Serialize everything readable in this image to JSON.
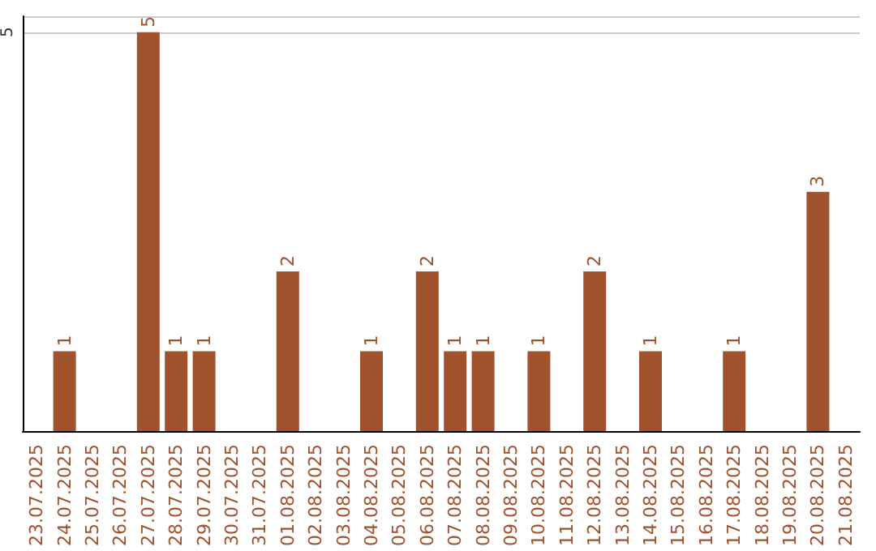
{
  "chart_data": {
    "type": "bar",
    "categories": [
      "23.07.2025",
      "24.07.2025",
      "25.07.2025",
      "26.07.2025",
      "27.07.2025",
      "28.07.2025",
      "29.07.2025",
      "30.07.2025",
      "31.07.2025",
      "01.08.2025",
      "02.08.2025",
      "03.08.2025",
      "04.08.2025",
      "05.08.2025",
      "06.08.2025",
      "07.08.2025",
      "08.08.2025",
      "09.08.2025",
      "10.08.2025",
      "11.08.2025",
      "12.08.2025",
      "13.08.2025",
      "14.08.2025",
      "15.08.2025",
      "16.08.2025",
      "17.08.2025",
      "18.08.2025",
      "19.08.2025",
      "20.08.2025",
      "21.08.2025"
    ],
    "values": [
      0,
      1,
      0,
      0,
      5,
      1,
      1,
      0,
      0,
      2,
      0,
      0,
      1,
      0,
      2,
      1,
      1,
      0,
      1,
      0,
      2,
      0,
      1,
      0,
      0,
      1,
      0,
      0,
      3,
      0
    ],
    "color": "#a0522d",
    "value_labels": [
      null,
      "1",
      null,
      null,
      "5",
      "1",
      "1",
      null,
      null,
      "2",
      null,
      null,
      "1",
      null,
      "2",
      "1",
      "1",
      null,
      "1",
      null,
      "2",
      null,
      "1",
      null,
      null,
      "1",
      null,
      null,
      "3",
      null
    ],
    "ylim": [
      0,
      5.2
    ],
    "yticks": [
      {
        "value": 0,
        "label": null
      },
      5
    ],
    "grid": "y"
  }
}
